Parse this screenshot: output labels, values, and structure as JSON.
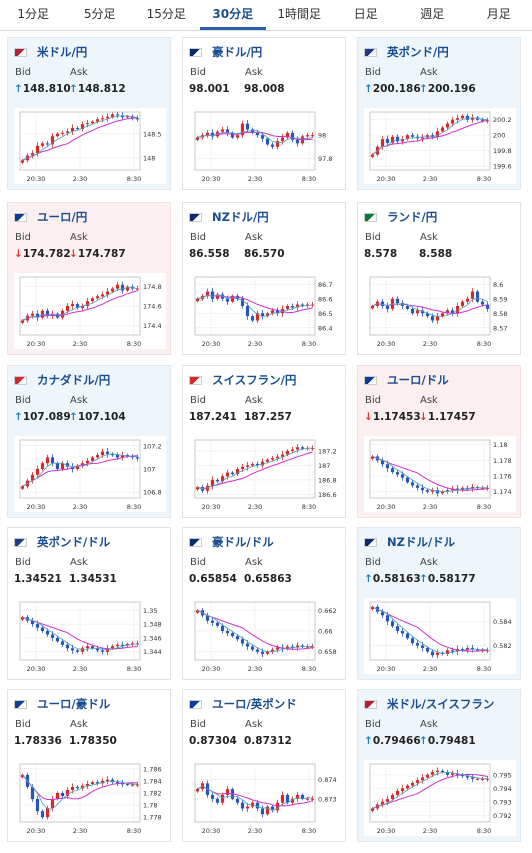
{
  "tabs": [
    {
      "label": "1分足",
      "active": false
    },
    {
      "label": "5分足",
      "active": false
    },
    {
      "label": "15分足",
      "active": false
    },
    {
      "label": "30分足",
      "active": true
    },
    {
      "label": "1時間足",
      "active": false
    },
    {
      "label": "日足",
      "active": false
    },
    {
      "label": "週足",
      "active": false
    },
    {
      "label": "月足",
      "active": false
    }
  ],
  "labels": {
    "bid": "Bid",
    "ask": "Ask"
  },
  "colors": {
    "up_arrow": "#1e7fc8",
    "down_arrow": "#d83a3a",
    "candle_up": "#d42a2a",
    "candle_down": "#2457b8",
    "ma_long": "#d030d0",
    "ma_short": "#4aa0b8",
    "title": "#1a4d8f"
  },
  "time_labels": [
    "20:30",
    "2:30",
    "8:30"
  ],
  "pairs": [
    {
      "name": "米ドル/円",
      "flag": "us-jp",
      "trend": "up",
      "bid": "148.810",
      "ask": "148.812",
      "arrow": "↑",
      "y_ticks": [
        "148.5",
        "148"
      ],
      "y_range": [
        147.75,
        148.95
      ],
      "series": [
        147.95,
        148.05,
        148.1,
        148.25,
        148.3,
        148.28,
        148.45,
        148.5,
        148.52,
        148.55,
        148.62,
        148.6,
        148.7,
        148.72,
        148.75,
        148.8,
        148.82,
        148.85,
        148.9,
        148.88,
        148.84,
        148.86,
        148.82,
        148.81
      ]
    },
    {
      "name": "豪ドル/円",
      "flag": "au-jp",
      "trend": "none",
      "bid": "98.001",
      "ask": "98.008",
      "arrow": "",
      "y_ticks": [
        "98",
        "97.8"
      ],
      "y_range": [
        97.7,
        98.2
      ],
      "series": [
        97.98,
        98.0,
        98.02,
        97.99,
        98.03,
        98.05,
        98.02,
        97.98,
        98.0,
        98.1,
        98.05,
        98.02,
        98.0,
        97.97,
        97.92,
        97.9,
        97.95,
        97.98,
        98.02,
        97.96,
        97.93,
        97.99,
        98.0,
        98.0
      ]
    },
    {
      "name": "英ポンド/円",
      "flag": "gb-jp",
      "trend": "up",
      "bid": "200.186",
      "ask": "200.196",
      "arrow": "↑",
      "y_ticks": [
        "200.2",
        "200",
        "199.8",
        "199.6"
      ],
      "y_range": [
        199.55,
        200.3
      ],
      "series": [
        199.75,
        199.85,
        199.95,
        199.9,
        199.98,
        199.92,
        199.95,
        200.0,
        199.98,
        199.96,
        199.97,
        200.0,
        199.98,
        200.05,
        200.1,
        200.15,
        200.2,
        200.22,
        200.25,
        200.2,
        200.23,
        200.2,
        200.19,
        200.19
      ]
    },
    {
      "name": "ユーロ/円",
      "flag": "eu-jp",
      "trend": "down",
      "bid": "174.782",
      "ask": "174.787",
      "arrow": "↓",
      "y_ticks": [
        "174.8",
        "174.6",
        "174.4"
      ],
      "y_range": [
        174.3,
        174.9
      ],
      "series": [
        174.45,
        174.5,
        174.52,
        174.48,
        174.55,
        174.5,
        174.52,
        174.48,
        174.55,
        174.6,
        174.62,
        174.58,
        174.6,
        174.65,
        174.68,
        174.7,
        174.72,
        174.75,
        174.78,
        174.82,
        174.76,
        174.8,
        174.78,
        174.78
      ]
    },
    {
      "name": "NZドル/円",
      "flag": "nz-jp",
      "trend": "none",
      "bid": "86.558",
      "ask": "86.570",
      "arrow": "",
      "y_ticks": [
        "86.7",
        "86.6",
        "86.5",
        "86.4"
      ],
      "y_range": [
        86.35,
        86.75
      ],
      "series": [
        86.6,
        86.62,
        86.65,
        86.6,
        86.63,
        86.6,
        86.58,
        86.62,
        86.6,
        86.55,
        86.48,
        86.45,
        86.5,
        86.48,
        86.5,
        86.52,
        86.5,
        86.53,
        86.55,
        86.54,
        86.56,
        86.55,
        86.56,
        86.56
      ]
    },
    {
      "name": "ランド/円",
      "flag": "za-jp",
      "trend": "none",
      "bid": "8.578",
      "ask": "8.588",
      "arrow": "",
      "y_ticks": [
        "8.6",
        "8.59",
        "8.58",
        "8.57"
      ],
      "y_range": [
        8.565,
        8.605
      ],
      "series": [
        8.585,
        8.588,
        8.585,
        8.583,
        8.59,
        8.587,
        8.585,
        8.583,
        8.58,
        8.582,
        8.58,
        8.578,
        8.575,
        8.578,
        8.58,
        8.582,
        8.58,
        8.585,
        8.588,
        8.59,
        8.595,
        8.588,
        8.586,
        8.583
      ]
    },
    {
      "name": "カナダドル/円",
      "flag": "ca-jp",
      "trend": "up",
      "bid": "107.089",
      "ask": "107.104",
      "arrow": "↑",
      "y_ticks": [
        "107.2",
        "107",
        "106.8"
      ],
      "y_range": [
        106.75,
        107.25
      ],
      "series": [
        106.85,
        106.9,
        106.95,
        107.0,
        107.05,
        107.1,
        107.05,
        107.0,
        107.05,
        107.02,
        107.0,
        107.03,
        107.05,
        107.07,
        107.1,
        107.12,
        107.15,
        107.13,
        107.12,
        107.1,
        107.12,
        107.11,
        107.1,
        107.09
      ]
    },
    {
      "name": "スイスフラン/円",
      "flag": "ch-jp",
      "trend": "none",
      "bid": "187.241",
      "ask": "187.257",
      "arrow": "",
      "y_ticks": [
        "187.2",
        "187",
        "186.8",
        "186.6"
      ],
      "y_range": [
        186.55,
        187.35
      ],
      "series": [
        186.7,
        186.65,
        186.72,
        186.8,
        186.78,
        186.85,
        186.9,
        186.88,
        186.95,
        186.98,
        187.0,
        187.02,
        187.0,
        187.05,
        187.08,
        187.1,
        187.12,
        187.15,
        187.2,
        187.22,
        187.25,
        187.23,
        187.24,
        187.24
      ]
    },
    {
      "name": "ユーロ/ドル",
      "flag": "eu-us",
      "trend": "down",
      "bid": "1.17453",
      "ask": "1.17457",
      "arrow": "↓",
      "y_ticks": [
        "1.18",
        "1.178",
        "1.176",
        "1.174"
      ],
      "y_range": [
        1.1732,
        1.1806
      ],
      "series": [
        1.1785,
        1.178,
        1.1775,
        1.177,
        1.1765,
        1.1762,
        1.1758,
        1.1752,
        1.1748,
        1.1745,
        1.1742,
        1.174,
        1.1742,
        1.1738,
        1.174,
        1.1742,
        1.1744,
        1.1742,
        1.1745,
        1.1744,
        1.1746,
        1.1745,
        1.1745,
        1.1745
      ]
    },
    {
      "name": "英ポンド/ドル",
      "flag": "gb-us",
      "trend": "none",
      "bid": "1.34521",
      "ask": "1.34531",
      "arrow": "",
      "y_ticks": [
        "1.35",
        "1.348",
        "1.346",
        "1.344"
      ],
      "y_range": [
        1.3428,
        1.3512
      ],
      "series": [
        1.349,
        1.3485,
        1.348,
        1.3475,
        1.347,
        1.3465,
        1.346,
        1.3455,
        1.345,
        1.3445,
        1.3442,
        1.344,
        1.3445,
        1.3448,
        1.3445,
        1.3442,
        1.344,
        1.3445,
        1.3448,
        1.345,
        1.3449,
        1.3451,
        1.3452,
        1.3452
      ]
    },
    {
      "name": "豪ドル/ドル",
      "flag": "au-us",
      "trend": "none",
      "bid": "0.65854",
      "ask": "0.65863",
      "arrow": "",
      "y_ticks": [
        "0.662",
        "0.66",
        "0.658"
      ],
      "y_range": [
        0.6572,
        0.6628
      ],
      "series": [
        0.662,
        0.6615,
        0.661,
        0.6608,
        0.6605,
        0.66,
        0.6598,
        0.6595,
        0.6592,
        0.6588,
        0.6585,
        0.6582,
        0.658,
        0.6578,
        0.658,
        0.6582,
        0.6584,
        0.6583,
        0.6585,
        0.6584,
        0.6586,
        0.6585,
        0.6585,
        0.6585
      ]
    },
    {
      "name": "NZドル/ドル",
      "flag": "nz-us",
      "trend": "up",
      "bid": "0.58163",
      "ask": "0.58177",
      "arrow": "↑",
      "y_ticks": [
        "0.584",
        "0.582"
      ],
      "y_range": [
        0.5808,
        0.5856
      ],
      "series": [
        0.5852,
        0.5848,
        0.5845,
        0.584,
        0.5836,
        0.5832,
        0.583,
        0.5826,
        0.5822,
        0.582,
        0.5818,
        0.5815,
        0.5812,
        0.5814,
        0.5813,
        0.5816,
        0.5815,
        0.5817,
        0.5816,
        0.5818,
        0.5817,
        0.5816,
        0.5816,
        0.5816
      ]
    },
    {
      "name": "ユーロ/豪ドル",
      "flag": "eu-au",
      "trend": "none",
      "bid": "1.78336",
      "ask": "1.78350",
      "arrow": "",
      "y_ticks": [
        "1.786",
        "1.784",
        "1.782",
        "1.78",
        "1.778"
      ],
      "y_range": [
        1.7772,
        1.7868
      ],
      "series": [
        1.785,
        1.783,
        1.781,
        1.779,
        1.778,
        1.7795,
        1.781,
        1.782,
        1.7815,
        1.7825,
        1.783,
        1.7828,
        1.7832,
        1.7835,
        1.7838,
        1.7836,
        1.784,
        1.7842,
        1.7838,
        1.7836,
        1.7835,
        1.7834,
        1.7834,
        1.7834
      ]
    },
    {
      "name": "ユーロ/英ポンド",
      "flag": "eu-gb",
      "trend": "none",
      "bid": "0.87304",
      "ask": "0.87312",
      "arrow": "",
      "y_ticks": [
        "0.874",
        "0.873"
      ],
      "y_range": [
        0.8718,
        0.8748
      ],
      "series": [
        0.8735,
        0.8738,
        0.8732,
        0.873,
        0.8728,
        0.8732,
        0.8735,
        0.873,
        0.8728,
        0.8725,
        0.8726,
        0.8728,
        0.8725,
        0.8722,
        0.8726,
        0.8724,
        0.8728,
        0.8732,
        0.8728,
        0.873,
        0.8732,
        0.873,
        0.873,
        0.873
      ]
    },
    {
      "name": "米ドル/スイスフラン",
      "flag": "us-ch",
      "trend": "up",
      "bid": "0.79466",
      "ask": "0.79481",
      "arrow": "↑",
      "y_ticks": [
        "0.795",
        "0.794",
        "0.793",
        "0.792"
      ],
      "y_range": [
        0.7915,
        0.7958
      ],
      "series": [
        0.7925,
        0.7928,
        0.793,
        0.7932,
        0.7935,
        0.7938,
        0.794,
        0.7942,
        0.7944,
        0.7946,
        0.7948,
        0.795,
        0.7952,
        0.7953,
        0.7952,
        0.795,
        0.7951,
        0.795,
        0.7949,
        0.7948,
        0.7947,
        0.7947,
        0.7947,
        0.7947
      ]
    }
  ]
}
